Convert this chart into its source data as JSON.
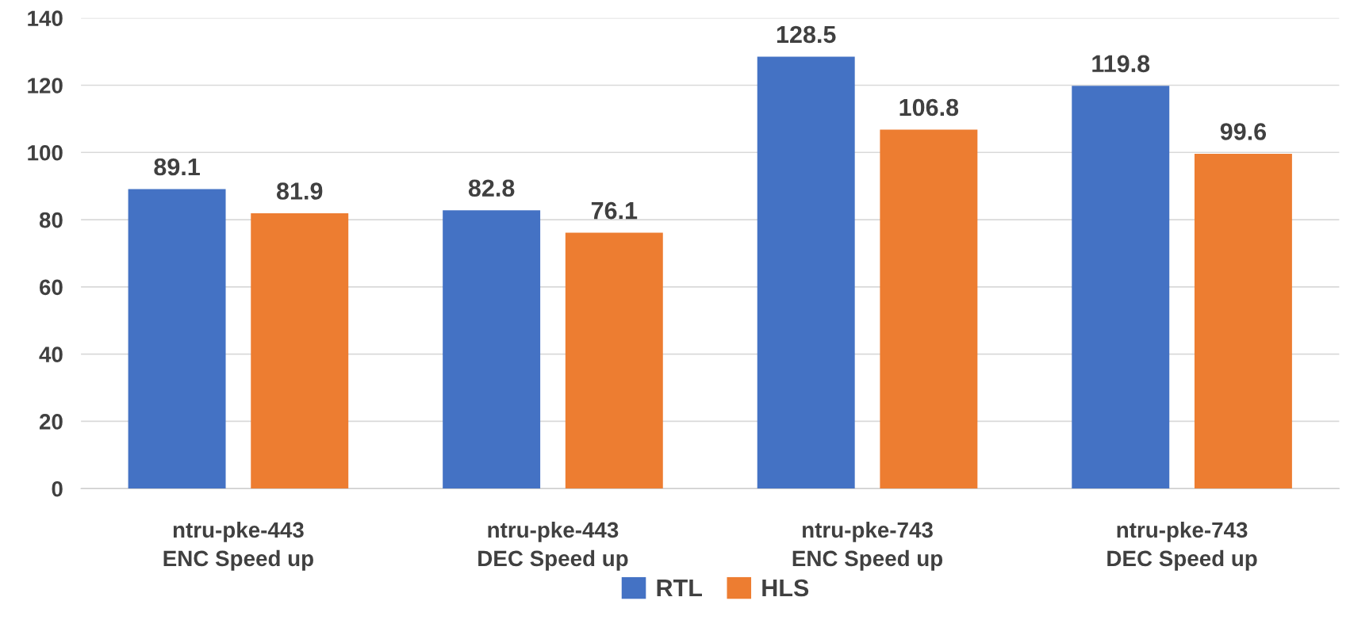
{
  "chart_data": {
    "type": "bar",
    "categories": [
      "ntru-pke-443\nENC Speed up",
      "ntru-pke-443\nDEC Speed up",
      "ntru-pke-743\nENC Speed up",
      "ntru-pke-743\nDEC Speed up"
    ],
    "series": [
      {
        "name": "RTL",
        "color": "#4472c4",
        "values": [
          89.1,
          82.8,
          128.5,
          119.8
        ]
      },
      {
        "name": "HLS",
        "color": "#ed7d31",
        "values": [
          81.9,
          76.1,
          106.8,
          99.6
        ]
      }
    ],
    "ylim": [
      0,
      140
    ],
    "yticks": [
      0,
      20,
      40,
      60,
      80,
      100,
      120,
      140
    ],
    "grid": "y",
    "legend": "bottom",
    "data_labels": true
  }
}
